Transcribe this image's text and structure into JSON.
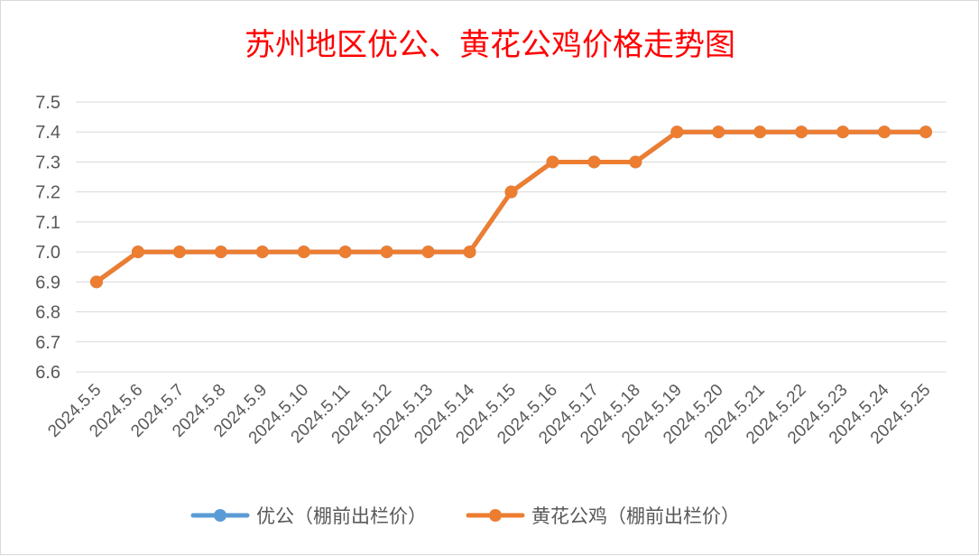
{
  "chart_data": {
    "type": "line",
    "title": "苏州地区优公、黄花公鸡价格走势图",
    "xlabel": "",
    "ylabel": "",
    "categories": [
      "2024.5.5",
      "2024.5.6",
      "2024.5.7",
      "2024.5.8",
      "2024.5.9",
      "2024.5.10",
      "2024.5.11",
      "2024.5.12",
      "2024.5.13",
      "2024.5.14",
      "2024.5.15",
      "2024.5.16",
      "2024.5.17",
      "2024.5.18",
      "2024.5.19",
      "2024.5.20",
      "2024.5.21",
      "2024.5.22",
      "2024.5.23",
      "2024.5.24",
      "2024.5.25"
    ],
    "ylim": [
      6.6,
      7.5
    ],
    "yticks": [
      "6.6",
      "6.7",
      "6.8",
      "6.9",
      "7.0",
      "7.1",
      "7.2",
      "7.3",
      "7.4",
      "7.5"
    ],
    "grid": true,
    "legend_position": "bottom",
    "series": [
      {
        "name": "优公（棚前出栏价）",
        "color": "#5b9bd5",
        "values": [
          6.9,
          7.0,
          7.0,
          7.0,
          7.0,
          7.0,
          7.0,
          7.0,
          7.0,
          7.0,
          7.2,
          7.3,
          7.3,
          7.3,
          7.4,
          7.4,
          7.4,
          7.4,
          7.4,
          7.4,
          7.4
        ]
      },
      {
        "name": "黄花公鸡（棚前出栏价）",
        "color": "#ed7d31",
        "values": [
          6.9,
          7.0,
          7.0,
          7.0,
          7.0,
          7.0,
          7.0,
          7.0,
          7.0,
          7.0,
          7.2,
          7.3,
          7.3,
          7.3,
          7.4,
          7.4,
          7.4,
          7.4,
          7.4,
          7.4,
          7.4
        ]
      }
    ]
  }
}
